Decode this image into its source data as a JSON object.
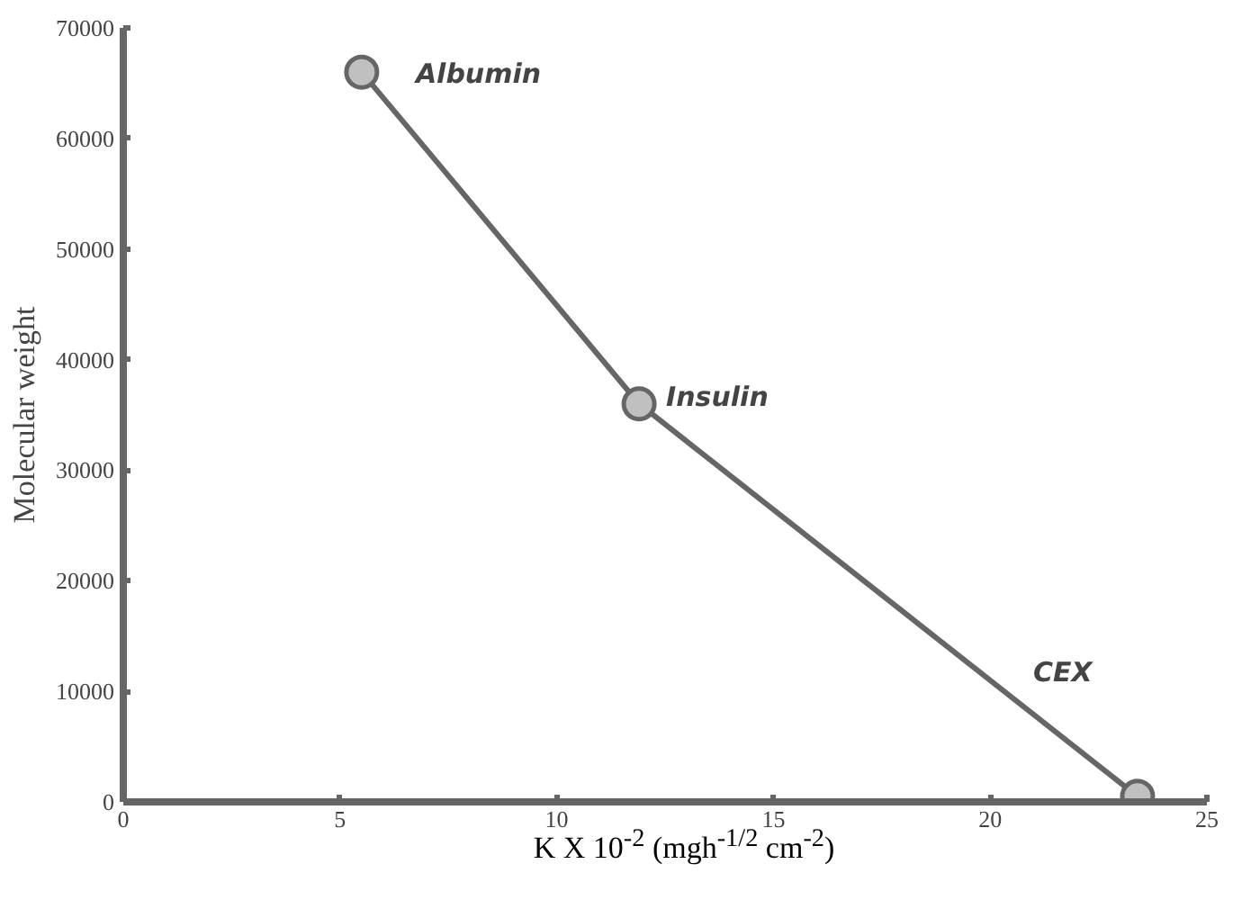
{
  "chart_data": {
    "type": "line",
    "xlabel": "K X 10$^{-2}$ (mgh$^{-1/2}$ cm$^{-2}$)",
    "ylabel": "Molecular weight",
    "x": [
      5.5,
      11.9,
      23.4
    ],
    "series": [
      {
        "color": "#666666",
        "values": [
          66000,
          36000,
          500
        ]
      }
    ],
    "marker": "circle",
    "grid": false,
    "xlim": [
      0,
      25
    ],
    "xticks": [
      0,
      5,
      10,
      15,
      20,
      25
    ],
    "ylim": [
      0,
      70000
    ],
    "yticks": [
      0,
      10000,
      20000,
      30000,
      40000,
      50000,
      60000,
      70000
    ],
    "annotations": [
      {
        "text": "Albumin",
        "x": 5.5,
        "y": 66000
      },
      {
        "text": "Insulin",
        "x": 11.9,
        "y": 36000
      },
      "CEX"
    ]
  }
}
